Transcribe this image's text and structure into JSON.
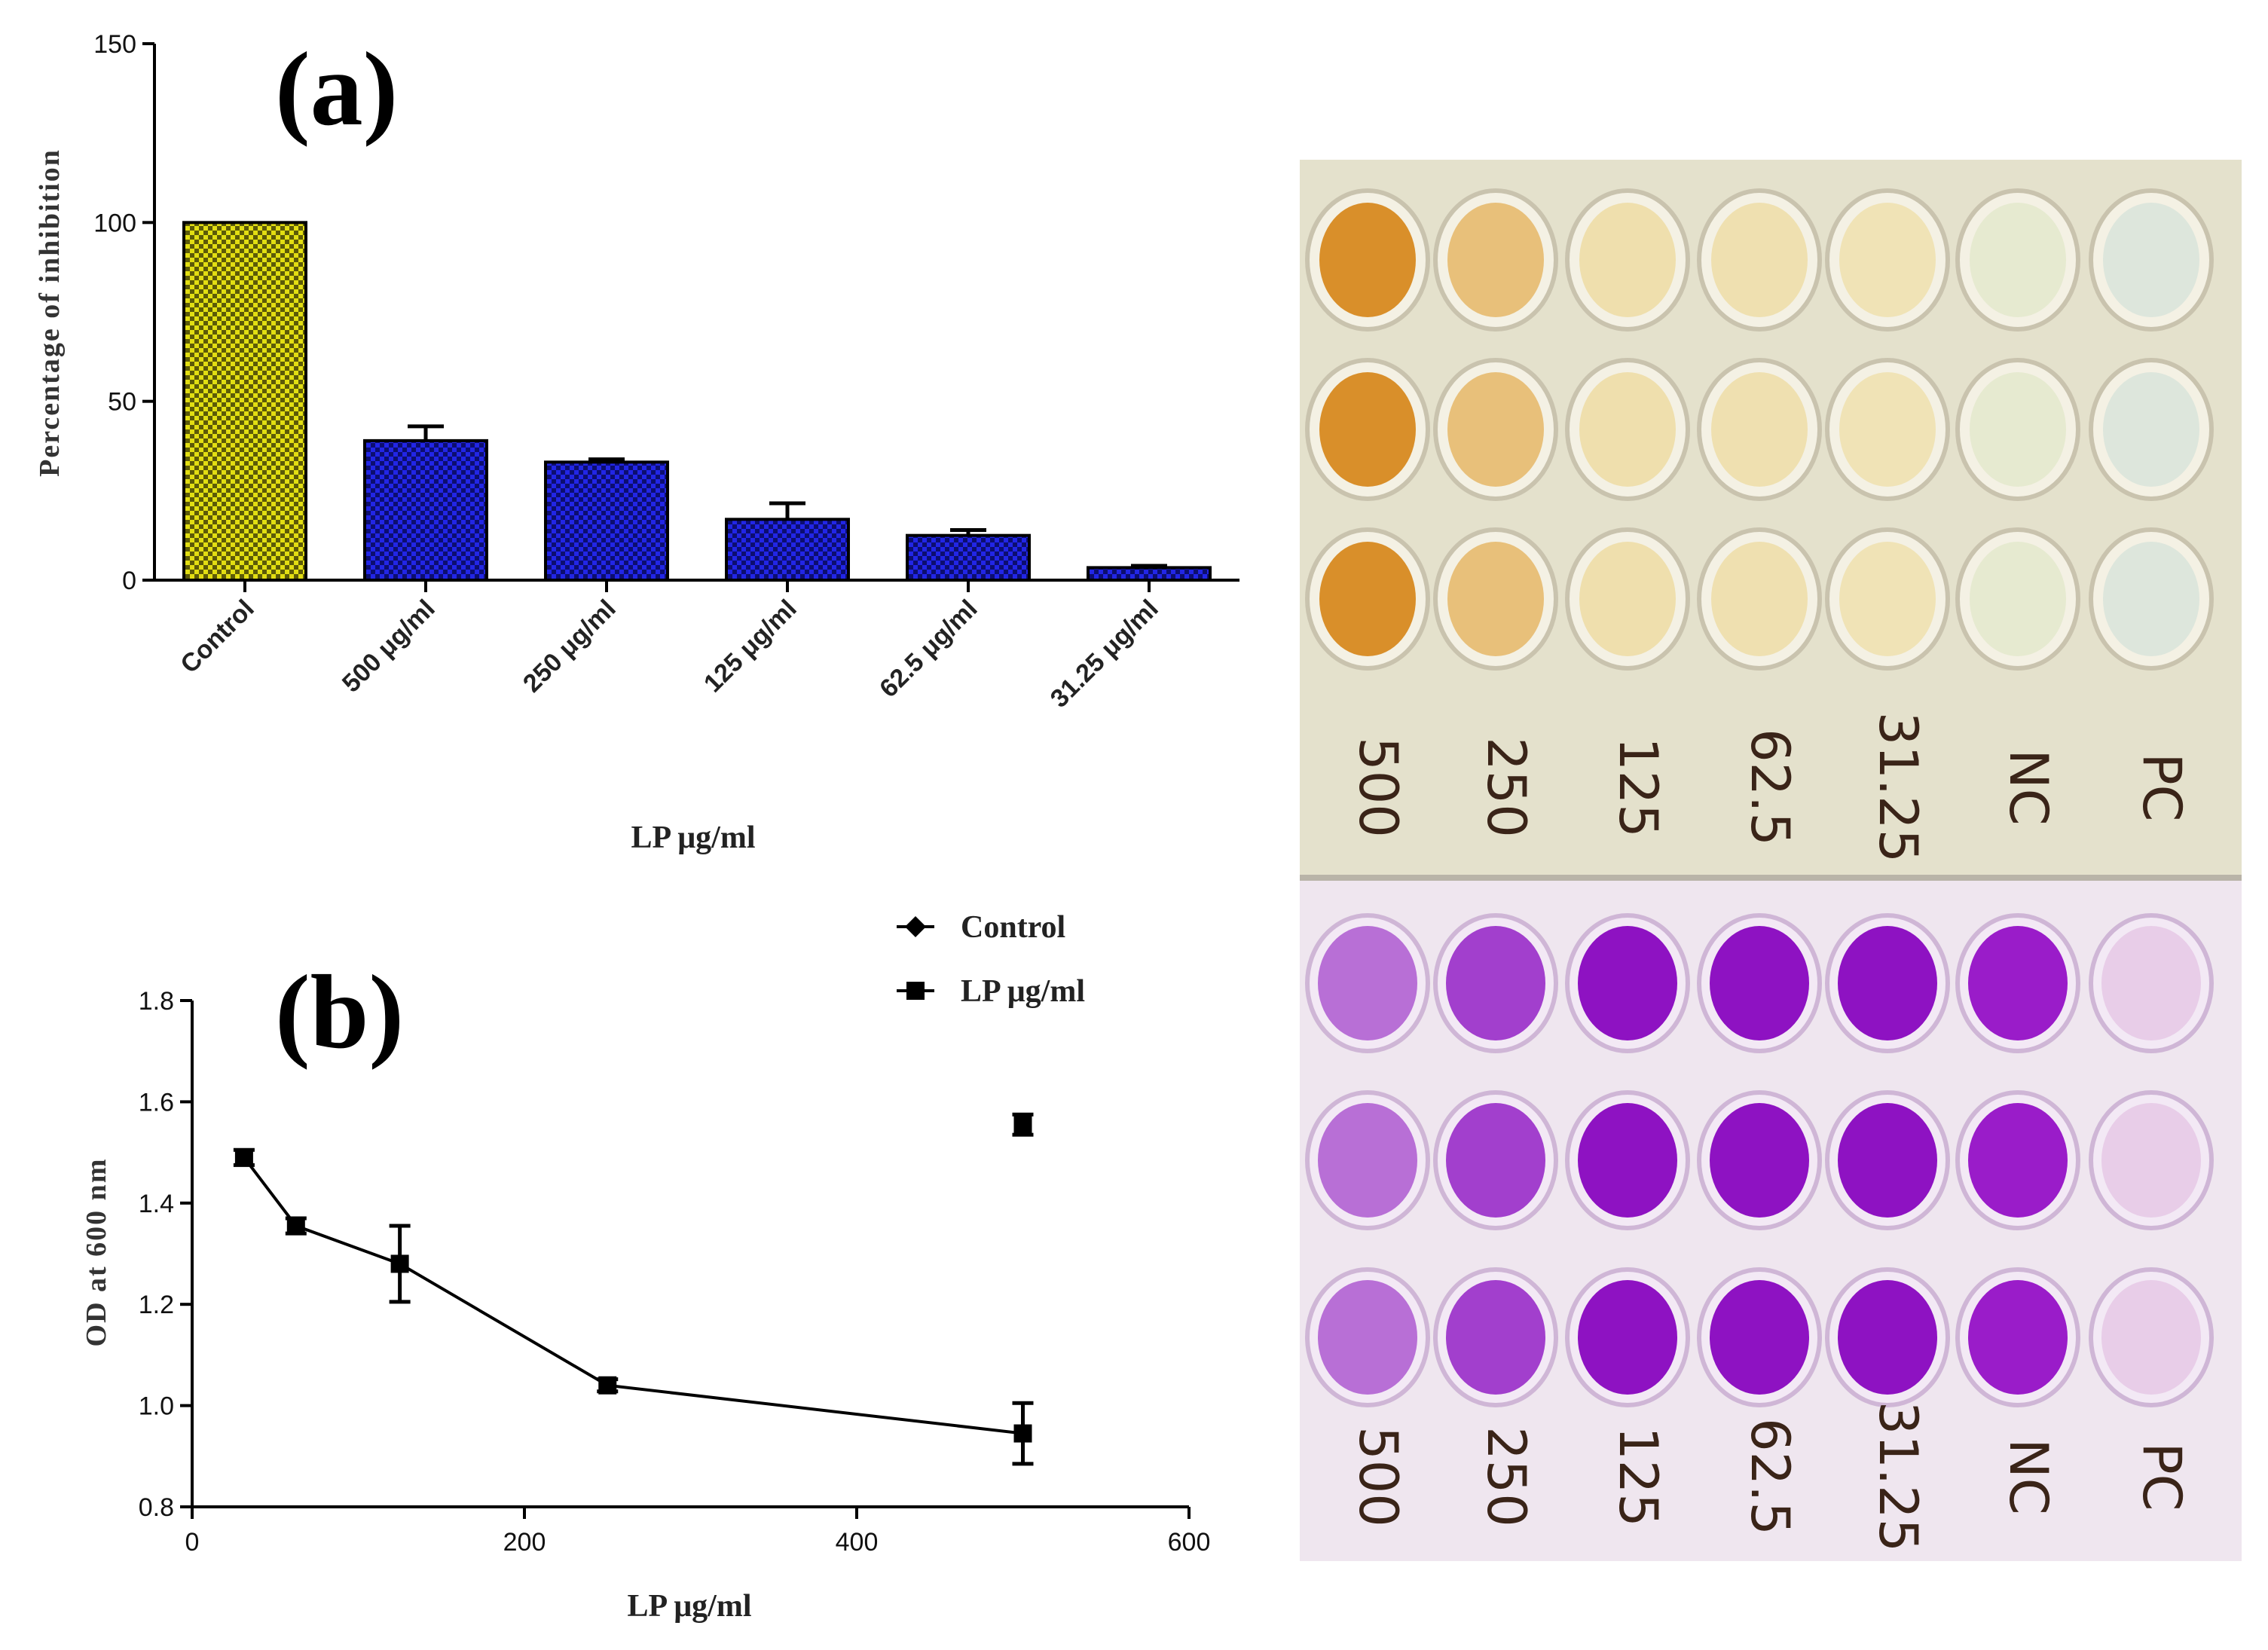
{
  "chart_data": [
    {
      "type": "bar",
      "panel_label": "(a)",
      "categories": [
        "Control",
        "500 μg/ml",
        "250 μg/ml",
        "125 μg/ml",
        "62.5 μg/ml",
        "31.25 μg/ml"
      ],
      "values": [
        100,
        39,
        33,
        17,
        12.5,
        3.5
      ],
      "errors": [
        0,
        4,
        0.8,
        4.5,
        1.5,
        0.5
      ],
      "colors": [
        "#d7d30f",
        "#1f22e0",
        "#1f22e0",
        "#1f22e0",
        "#1f22e0",
        "#1f22e0"
      ],
      "ylabel": "Percentage of  inhibition",
      "xlabel": "LP μg/ml",
      "ylim": [
        0,
        150
      ],
      "yticks": [
        "0",
        "50",
        "100",
        "150"
      ]
    },
    {
      "type": "line",
      "panel_label": "(b)",
      "series": [
        {
          "name": "Control",
          "marker": "diamond",
          "x": [
            500
          ],
          "y": [
            1.555
          ],
          "err": [
            0.02
          ]
        },
        {
          "name": "LP μg/ml",
          "marker": "square",
          "x": [
            31.25,
            62.5,
            125,
            250,
            500
          ],
          "y": [
            1.49,
            1.355,
            1.28,
            1.04,
            0.945
          ],
          "err": [
            0.015,
            0.015,
            0.075,
            0.012,
            0.06
          ]
        }
      ],
      "ylabel": "OD at 600 nm",
      "xlabel": "LP μg/ml",
      "xlim": [
        0,
        600
      ],
      "ylim": [
        0.8,
        1.8
      ],
      "xticks": [
        "0",
        "200",
        "400",
        "600"
      ],
      "yticks": [
        "0.8",
        "1.0",
        "1.2",
        "1.4",
        "1.6",
        "1.8"
      ]
    }
  ],
  "photo": {
    "top_plate_labels": [
      "500",
      "250",
      "125",
      "62.5",
      "31.25",
      "NC",
      "PC"
    ],
    "bottom_plate_labels": [
      "500",
      "250",
      "125",
      "62.5",
      "31.25",
      "NC",
      "PC"
    ],
    "top_well_colors": [
      "#d98f2a",
      "#e8c07a",
      "#efdfad",
      "#efe0b0",
      "#f0e3b6",
      "#e6ead0",
      "#dde6dc"
    ],
    "bottom_well_colors": [
      "#b86fd6",
      "#a23fcd",
      "#8e12c2",
      "#8e12c2",
      "#8e12c2",
      "#9a1cc9",
      "#e8cde8"
    ]
  }
}
